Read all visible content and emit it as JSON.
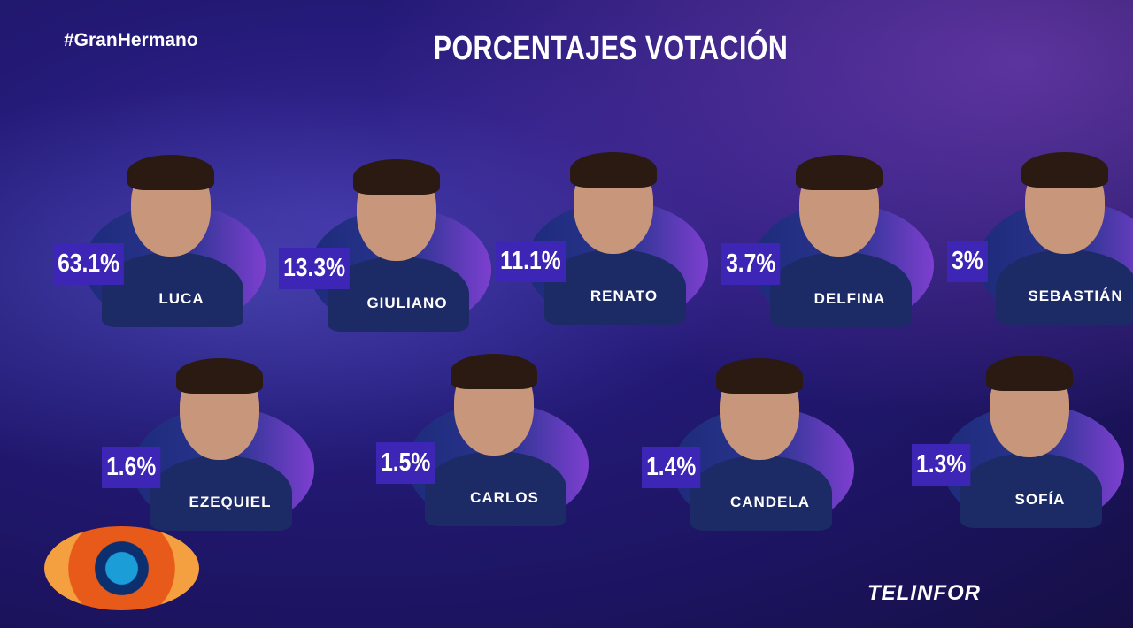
{
  "header": {
    "hashtag": "#GranHermano",
    "title": "PORCENTAJES VOTACIÓN"
  },
  "contestants": [
    {
      "name": "LUCA",
      "percentage": "63.1%"
    },
    {
      "name": "GIULIANO",
      "percentage": "13.3%"
    },
    {
      "name": "RENATO",
      "percentage": "11.1%"
    },
    {
      "name": "DELFINA",
      "percentage": "3.7%"
    },
    {
      "name": "SEBASTIÁN",
      "percentage": "3%"
    },
    {
      "name": "EZEQUIEL",
      "percentage": "1.6%"
    },
    {
      "name": "CARLOS",
      "percentage": "1.5%"
    },
    {
      "name": "CANDELA",
      "percentage": "1.4%"
    },
    {
      "name": "SOFÍA",
      "percentage": "1.3%"
    }
  ],
  "logo": {
    "brand": "TELINFOR"
  }
}
